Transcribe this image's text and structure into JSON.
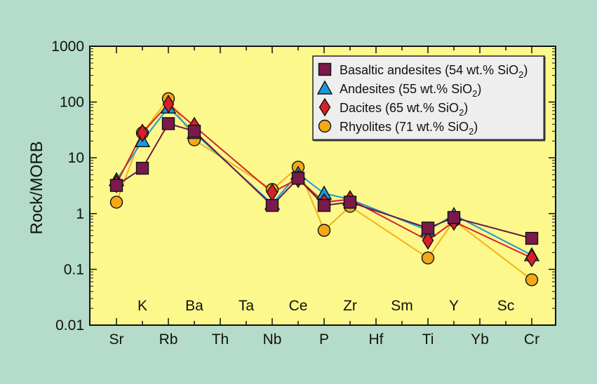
{
  "colors": {
    "background": "#b5dccb",
    "plot_area": "#fcf88c",
    "legend_box": "#eeeeee"
  },
  "chart_data": {
    "type": "line",
    "ylabel": "Rock/MORB",
    "y_scale": "log",
    "ylim": [
      0.01,
      1000
    ],
    "y_ticks": [
      "0.01",
      "0.1",
      "1",
      "10",
      "100",
      "1000"
    ],
    "grid": false,
    "legend_position": "top-right",
    "categories": [
      "Sr",
      "K",
      "Rb",
      "Ba",
      "Th",
      "Ta",
      "Nb",
      "Ce",
      "P",
      "Zr",
      "Hf",
      "Sm",
      "Ti",
      "Y",
      "Yb",
      "Sc",
      "Cr"
    ],
    "bottom_row_labels": [
      "Sr",
      "Rb",
      "Th",
      "Nb",
      "P",
      "Hf",
      "Ti",
      "Yb",
      "Cr"
    ],
    "inner_row_labels": [
      "K",
      "Ba",
      "Ta",
      "Ce",
      "Zr",
      "Sm",
      "Y",
      "Sc"
    ],
    "series": [
      {
        "name": "Rhyolites (71 wt.% SiO",
        "name_sub": "2",
        "name_end": ")",
        "marker": "circle",
        "color": "#f2a818",
        "line_color": "#f2b01c",
        "values": [
          1.6,
          28,
          115,
          21,
          null,
          null,
          2.7,
          6.8,
          0.5,
          1.35,
          null,
          null,
          0.16,
          0.75,
          null,
          null,
          0.065
        ]
      },
      {
        "name": "Andesites (55 wt.% SiO",
        "name_sub": "2",
        "name_end": ")",
        "marker": "triangle",
        "color": "#1a9ad8",
        "line_color": "#1a9ad8",
        "values": [
          4.0,
          20,
          80,
          28,
          null,
          null,
          1.5,
          5.2,
          2.3,
          1.8,
          null,
          null,
          0.5,
          0.95,
          null,
          null,
          0.18
        ]
      },
      {
        "name": "Dacites (65 wt.% SiO",
        "name_sub": "2",
        "name_end": ")",
        "marker": "diamond",
        "color": "#d8202a",
        "line_color": "#d8202a",
        "values": [
          3.4,
          28,
          92,
          37,
          null,
          null,
          2.4,
          4.2,
          1.6,
          1.8,
          null,
          null,
          0.33,
          0.72,
          null,
          null,
          0.16
        ]
      },
      {
        "name": "Basaltic andesites (54 wt.% SiO",
        "name_sub": "2",
        "name_end": ")",
        "marker": "square",
        "color": "#7a1a4c",
        "line_color": "#6a1a40",
        "values": [
          3.2,
          6.5,
          41,
          30,
          null,
          null,
          1.4,
          4.3,
          1.4,
          1.6,
          null,
          null,
          0.55,
          0.85,
          null,
          null,
          0.36
        ]
      }
    ],
    "legend_order": [
      3,
      1,
      2,
      0
    ]
  }
}
